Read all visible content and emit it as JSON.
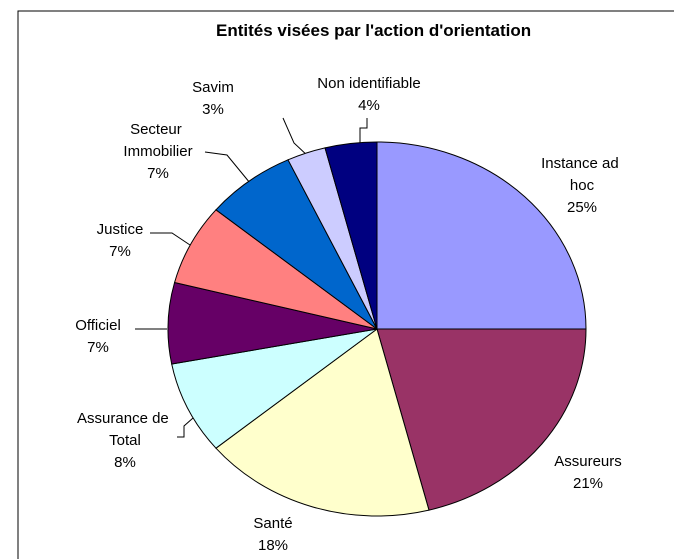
{
  "chart_data": {
    "type": "pie",
    "title": "Entités visées par l'action d'orientation",
    "categories": [
      "Instance ad hoc",
      "Assureurs",
      "Santé",
      "Assurance de Total",
      "Officiel",
      "Justice",
      "Secteur Immobilier",
      "Savim",
      "Non identifiable"
    ],
    "values": [
      25,
      21,
      18,
      8,
      7,
      7,
      7,
      3,
      4
    ],
    "value_labels": [
      "25%",
      "21%",
      "18%",
      "8%",
      "7%",
      "7%",
      "7%",
      "3%",
      "4%"
    ],
    "colors": [
      "#9999ff",
      "#993366",
      "#ffffcc",
      "#ccffff",
      "#660066",
      "#ff8080",
      "#0066cc",
      "#ccccff",
      "#000080"
    ]
  }
}
